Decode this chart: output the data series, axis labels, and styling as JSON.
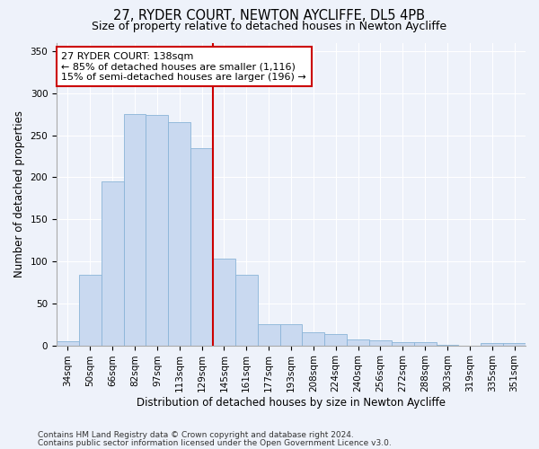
{
  "title": "27, RYDER COURT, NEWTON AYCLIFFE, DL5 4PB",
  "subtitle": "Size of property relative to detached houses in Newton Aycliffe",
  "xlabel": "Distribution of detached houses by size in Newton Aycliffe",
  "ylabel": "Number of detached properties",
  "categories": [
    "34sqm",
    "50sqm",
    "66sqm",
    "82sqm",
    "97sqm",
    "113sqm",
    "129sqm",
    "145sqm",
    "161sqm",
    "177sqm",
    "193sqm",
    "208sqm",
    "224sqm",
    "240sqm",
    "256sqm",
    "272sqm",
    "288sqm",
    "303sqm",
    "319sqm",
    "335sqm",
    "351sqm"
  ],
  "values": [
    5,
    84,
    195,
    275,
    274,
    265,
    235,
    103,
    84,
    25,
    25,
    16,
    13,
    7,
    6,
    4,
    4,
    1,
    0,
    3,
    3
  ],
  "bar_color": "#c9d9f0",
  "bar_edge_color": "#8ab4d8",
  "vline_x_index": 6.5,
  "vline_color": "#cc0000",
  "annotation_text": "27 RYDER COURT: 138sqm\n← 85% of detached houses are smaller (1,116)\n15% of semi-detached houses are larger (196) →",
  "annotation_box_color": "#ffffff",
  "annotation_box_edge_color": "#cc0000",
  "footnote1": "Contains HM Land Registry data © Crown copyright and database right 2024.",
  "footnote2": "Contains public sector information licensed under the Open Government Licence v3.0.",
  "ylim": [
    0,
    360
  ],
  "yticks": [
    0,
    50,
    100,
    150,
    200,
    250,
    300,
    350
  ],
  "background_color": "#eef2fa",
  "grid_color": "#ffffff",
  "title_fontsize": 10.5,
  "subtitle_fontsize": 9,
  "axis_label_fontsize": 8.5,
  "tick_fontsize": 7.5,
  "annotation_fontsize": 8,
  "footnote_fontsize": 6.5
}
